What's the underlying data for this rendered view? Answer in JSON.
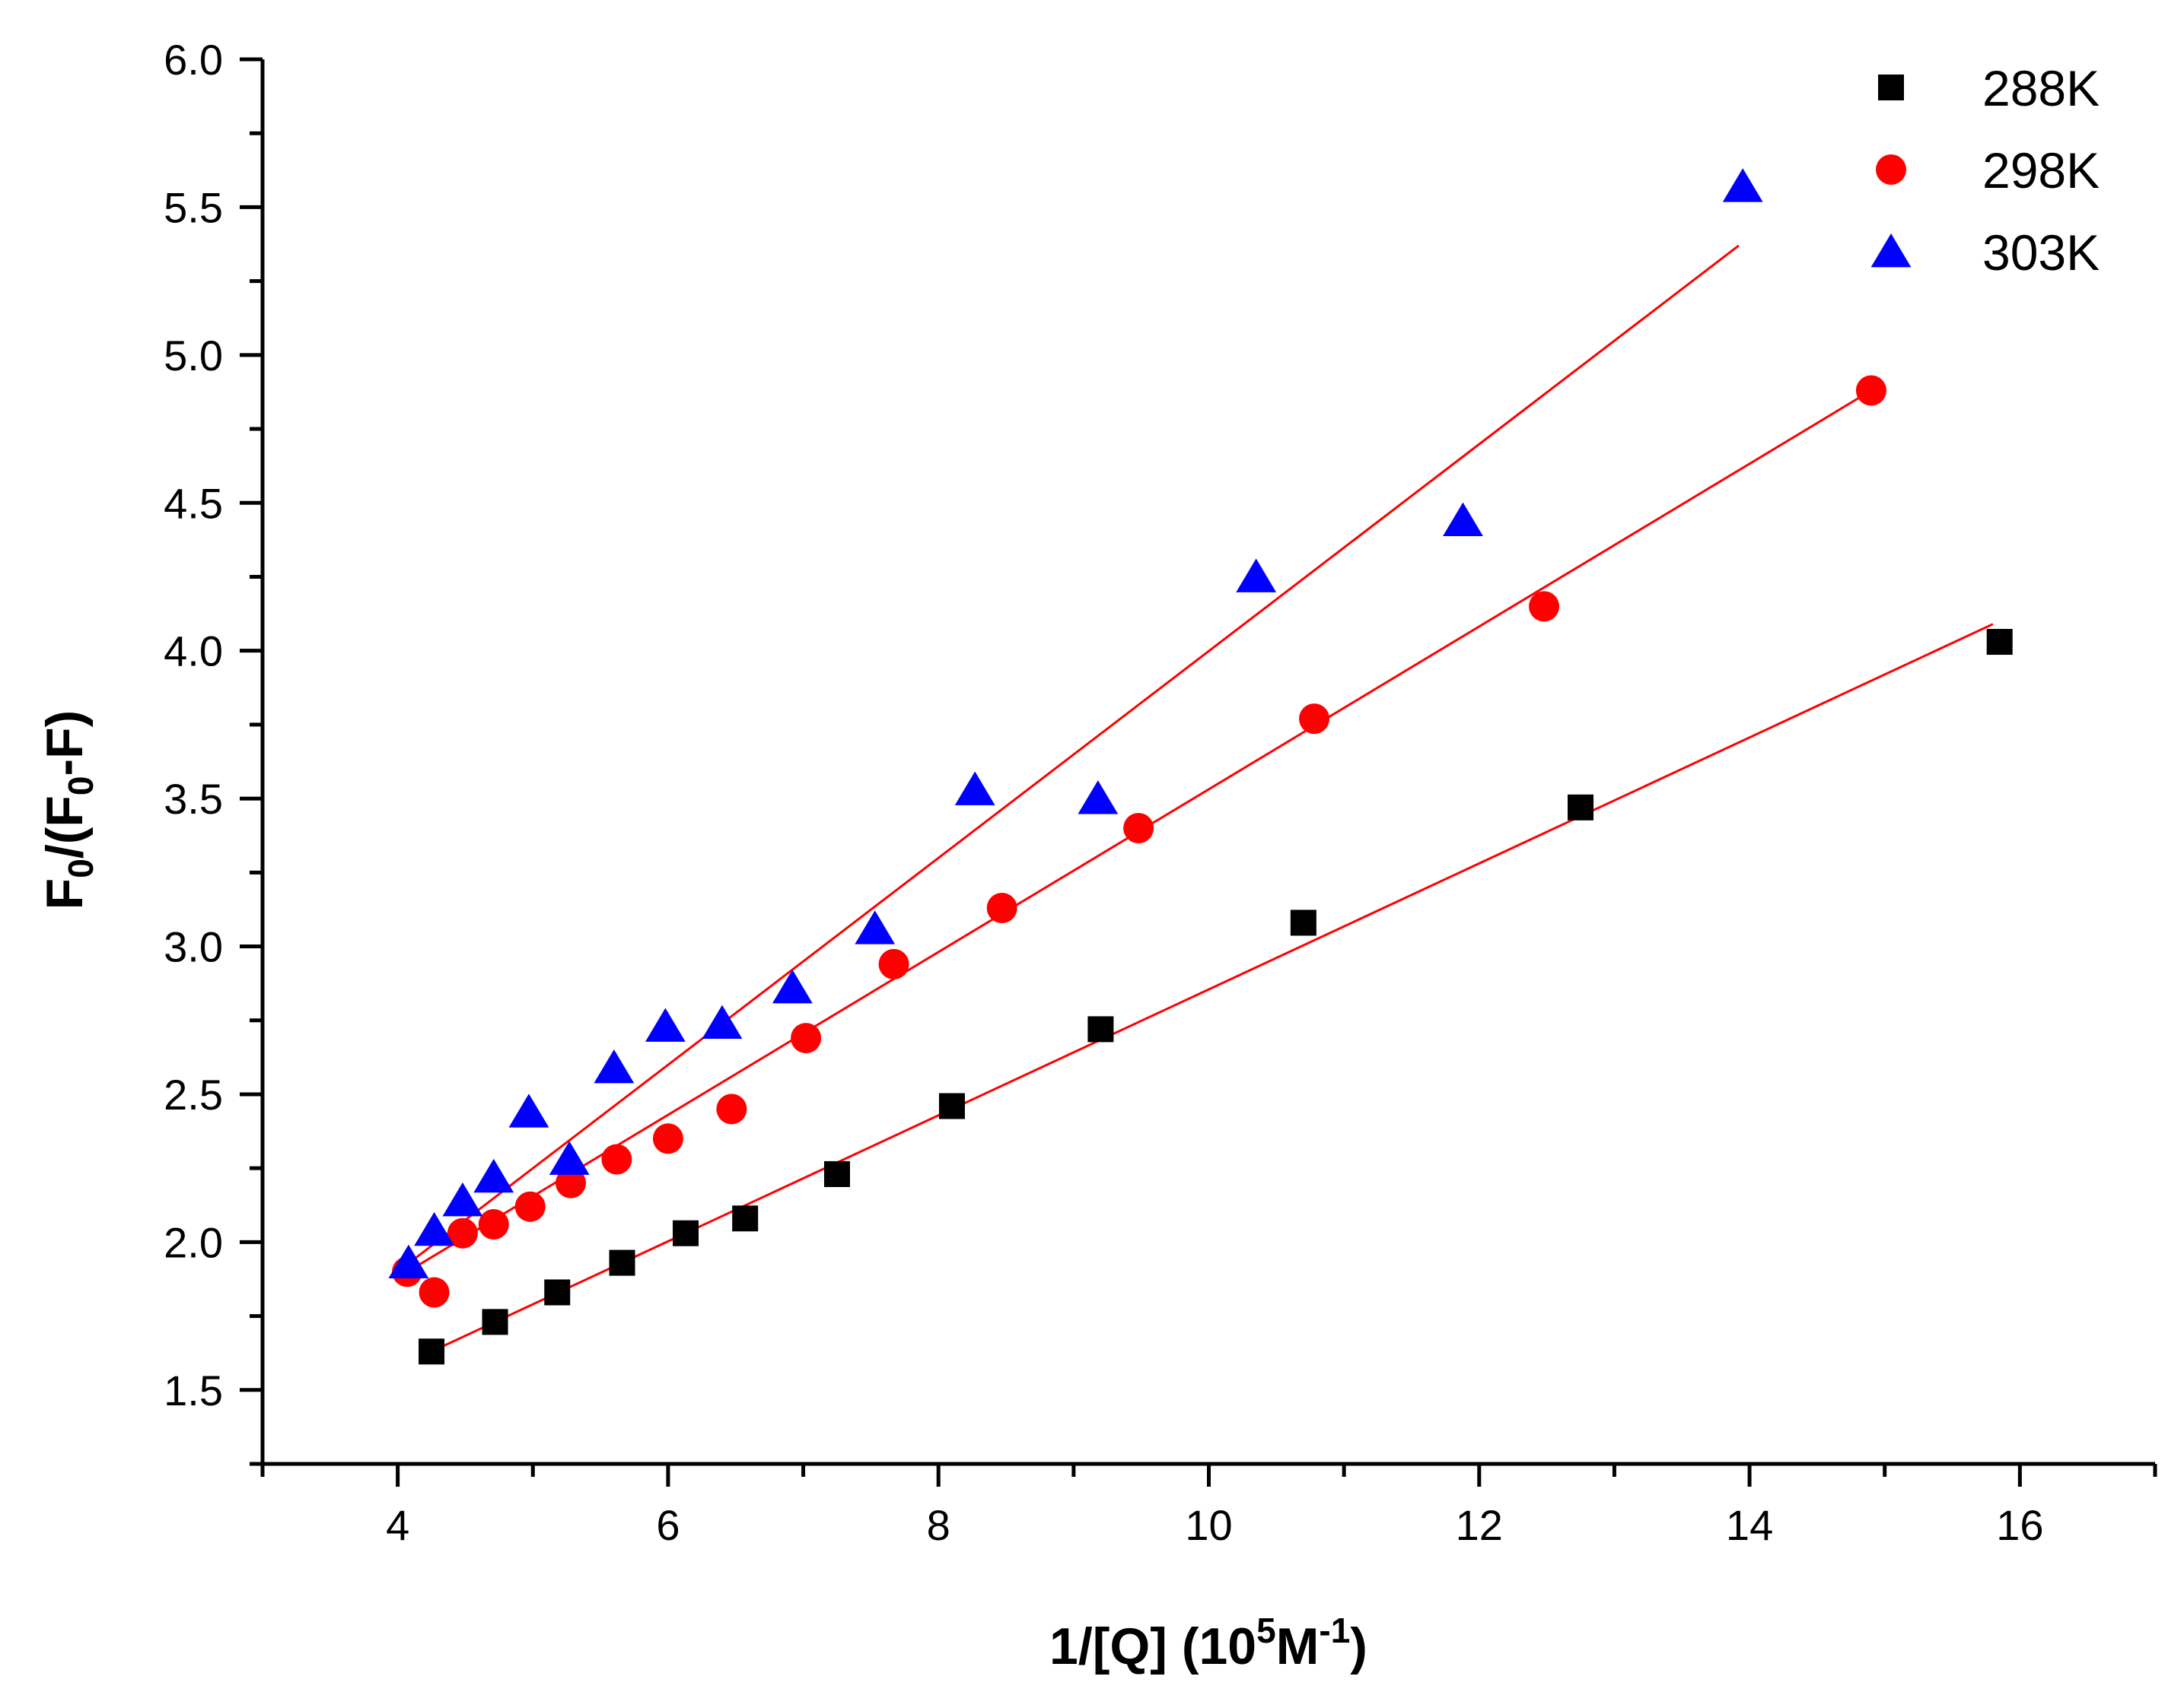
{
  "chart_data": {
    "type": "scatter",
    "title": "",
    "xlabel": {
      "main": "1/[Q] (10",
      "sup": "5",
      "mid": "M",
      "sup2": "-1",
      "end": ")"
    },
    "ylabel": {
      "prefix": "F",
      "sub1": "0",
      "middle": "/(F",
      "sub2": "0",
      "suffix": "-F)"
    },
    "xlim": [
      3,
      17
    ],
    "ylim": [
      1.25,
      6.0
    ],
    "xticks": [
      4,
      6,
      8,
      10,
      12,
      14,
      16
    ],
    "xtick_labels": [
      "4",
      "6",
      "8",
      "10",
      "12",
      "14",
      "16"
    ],
    "yticks": [
      1.5,
      2.0,
      2.5,
      3.0,
      3.5,
      4.0,
      4.5,
      5.0,
      5.5,
      6.0
    ],
    "ytick_labels": [
      "1.5",
      "2.0",
      "2.5",
      "3.0",
      "3.5",
      "4.0",
      "4.5",
      "5.0",
      "5.5",
      "6.0"
    ],
    "legend_position": "top-right",
    "series": [
      {
        "name": "288K",
        "marker": "square",
        "color": "#000000",
        "points": [
          [
            4.25,
            1.63
          ],
          [
            4.72,
            1.73
          ],
          [
            5.18,
            1.83
          ],
          [
            5.66,
            1.93
          ],
          [
            6.13,
            2.03
          ],
          [
            6.57,
            2.08
          ],
          [
            7.25,
            2.23
          ],
          [
            8.1,
            2.46
          ],
          [
            9.2,
            2.72
          ],
          [
            10.7,
            3.08
          ],
          [
            12.75,
            3.47
          ],
          [
            15.85,
            4.03
          ]
        ],
        "fit": {
          "x": [
            4.25,
            15.8
          ],
          "y": [
            1.63,
            4.09
          ]
        }
      },
      {
        "name": "298K",
        "marker": "circle",
        "color": "#ff0000",
        "points": [
          [
            4.07,
            1.9
          ],
          [
            4.27,
            1.83
          ],
          [
            4.48,
            2.03
          ],
          [
            4.71,
            2.06
          ],
          [
            4.98,
            2.12
          ],
          [
            5.28,
            2.2
          ],
          [
            5.62,
            2.28
          ],
          [
            6.0,
            2.35
          ],
          [
            6.47,
            2.45
          ],
          [
            7.02,
            2.69
          ],
          [
            7.67,
            2.94
          ],
          [
            8.47,
            3.13
          ],
          [
            9.48,
            3.4
          ],
          [
            10.78,
            3.77
          ],
          [
            12.48,
            4.15
          ],
          [
            14.9,
            4.88
          ]
        ],
        "fit": {
          "x": [
            4.0,
            14.9
          ],
          "y": [
            1.88,
            4.88
          ]
        }
      },
      {
        "name": "303K",
        "marker": "triangle",
        "color": "#0000ff",
        "points": [
          [
            4.08,
            1.93
          ],
          [
            4.27,
            2.04
          ],
          [
            4.48,
            2.14
          ],
          [
            4.71,
            2.22
          ],
          [
            4.97,
            2.44
          ],
          [
            5.27,
            2.28
          ],
          [
            5.6,
            2.59
          ],
          [
            5.98,
            2.73
          ],
          [
            6.4,
            2.74
          ],
          [
            6.92,
            2.86
          ],
          [
            7.53,
            3.06
          ],
          [
            8.27,
            3.53
          ],
          [
            9.18,
            3.5
          ],
          [
            10.35,
            4.25
          ],
          [
            11.88,
            4.44
          ],
          [
            13.95,
            5.57
          ]
        ],
        "fit": {
          "x": [
            4.0,
            13.92
          ],
          "y": [
            1.9,
            5.37
          ]
        }
      }
    ],
    "fit_line_color": "#ff0000"
  }
}
